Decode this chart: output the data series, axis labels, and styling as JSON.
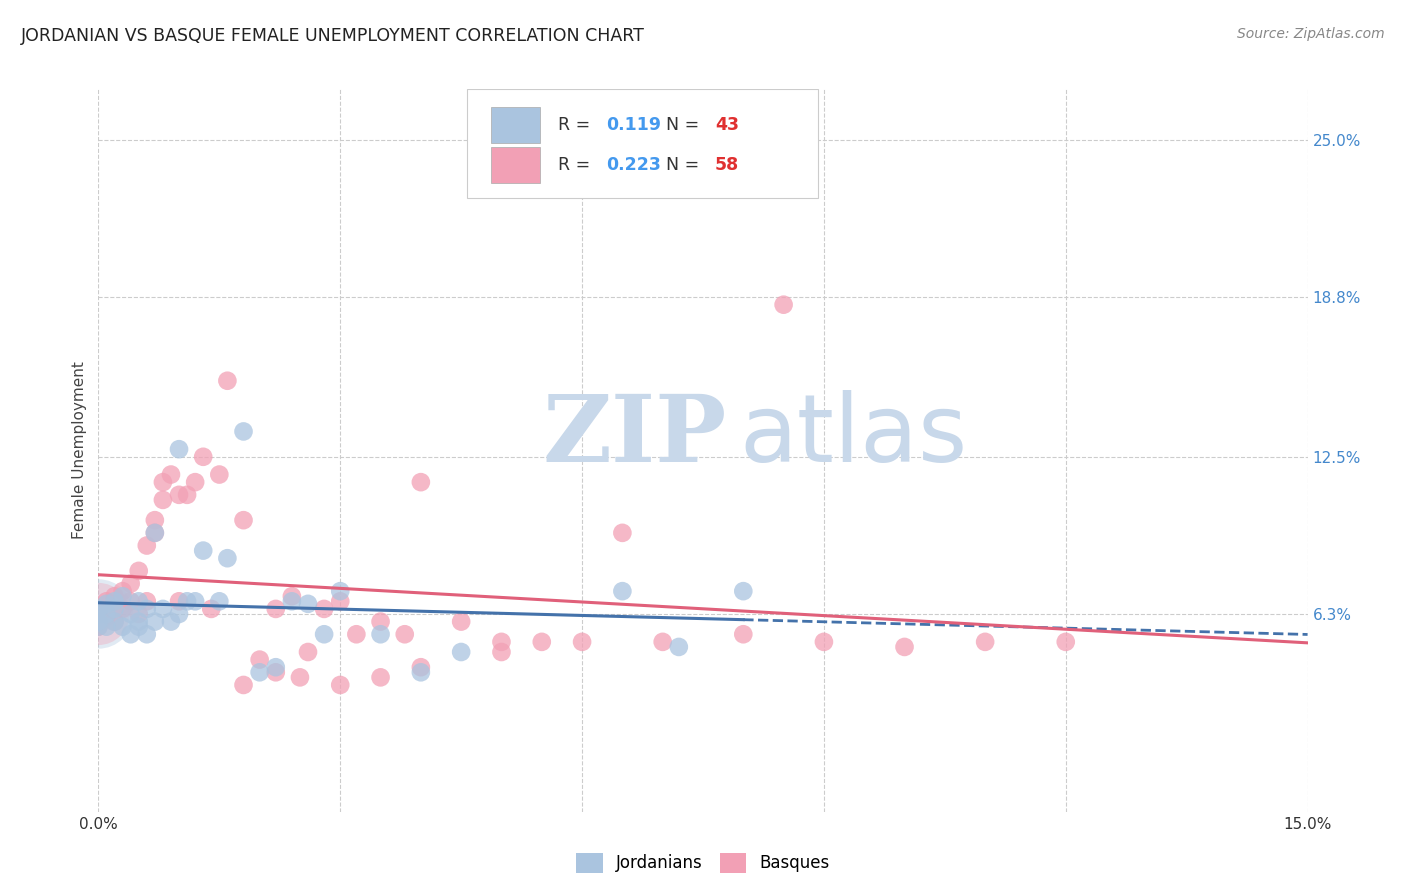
{
  "title": "JORDANIAN VS BASQUE FEMALE UNEMPLOYMENT CORRELATION CHART",
  "source": "Source: ZipAtlas.com",
  "ylabel": "Female Unemployment",
  "xlim": [
    0.0,
    0.15
  ],
  "ylim": [
    -0.015,
    0.27
  ],
  "yticks": [
    0.063,
    0.125,
    0.188,
    0.25
  ],
  "ytick_labels": [
    "6.3%",
    "12.5%",
    "18.8%",
    "25.0%"
  ],
  "xticks": [
    0.0,
    0.03,
    0.06,
    0.09,
    0.12,
    0.15
  ],
  "xtick_labels": [
    "0.0%",
    "",
    "",
    "",
    "",
    "15.0%"
  ],
  "background_color": "#ffffff",
  "grid_color": "#cccccc",
  "watermark_zip": "ZIP",
  "watermark_atlas": "atlas",
  "watermark_color_zip": "#c8d8ea",
  "watermark_color_atlas": "#c8d8ea",
  "jordanians_color": "#aac4df",
  "basques_color": "#f2a0b5",
  "jordanians_line_color": "#4472aa",
  "basques_line_color": "#e0607a",
  "R_jordanians": "0.119",
  "N_jordanians": "43",
  "R_basques": "0.223",
  "N_basques": "58",
  "jordanians_x": [
    0.0,
    0.0,
    0.0,
    0.0,
    0.001,
    0.001,
    0.001,
    0.002,
    0.002,
    0.002,
    0.003,
    0.003,
    0.004,
    0.004,
    0.005,
    0.005,
    0.005,
    0.006,
    0.006,
    0.007,
    0.007,
    0.008,
    0.009,
    0.01,
    0.01,
    0.011,
    0.012,
    0.013,
    0.015,
    0.016,
    0.018,
    0.02,
    0.022,
    0.024,
    0.026,
    0.028,
    0.03,
    0.035,
    0.04,
    0.045,
    0.065,
    0.072,
    0.08
  ],
  "jordanians_y": [
    0.063,
    0.06,
    0.058,
    0.065,
    0.058,
    0.063,
    0.067,
    0.06,
    0.065,
    0.068,
    0.058,
    0.07,
    0.055,
    0.063,
    0.06,
    0.058,
    0.068,
    0.055,
    0.065,
    0.095,
    0.06,
    0.065,
    0.06,
    0.063,
    0.128,
    0.068,
    0.068,
    0.088,
    0.068,
    0.085,
    0.135,
    0.04,
    0.042,
    0.068,
    0.067,
    0.055,
    0.072,
    0.055,
    0.04,
    0.048,
    0.072,
    0.05,
    0.072
  ],
  "basques_x": [
    0.0,
    0.0,
    0.0,
    0.001,
    0.001,
    0.002,
    0.002,
    0.003,
    0.003,
    0.004,
    0.004,
    0.005,
    0.005,
    0.006,
    0.006,
    0.007,
    0.007,
    0.008,
    0.008,
    0.009,
    0.01,
    0.01,
    0.011,
    0.012,
    0.013,
    0.014,
    0.015,
    0.016,
    0.018,
    0.02,
    0.022,
    0.024,
    0.026,
    0.028,
    0.03,
    0.032,
    0.035,
    0.038,
    0.04,
    0.045,
    0.05,
    0.055,
    0.06,
    0.065,
    0.07,
    0.08,
    0.085,
    0.09,
    0.1,
    0.11,
    0.12,
    0.03,
    0.018,
    0.022,
    0.025,
    0.035,
    0.04,
    0.05
  ],
  "basques_y": [
    0.06,
    0.065,
    0.058,
    0.062,
    0.068,
    0.06,
    0.07,
    0.065,
    0.072,
    0.068,
    0.075,
    0.063,
    0.08,
    0.09,
    0.068,
    0.095,
    0.1,
    0.115,
    0.108,
    0.118,
    0.068,
    0.11,
    0.11,
    0.115,
    0.125,
    0.065,
    0.118,
    0.155,
    0.1,
    0.045,
    0.065,
    0.07,
    0.048,
    0.065,
    0.068,
    0.055,
    0.06,
    0.055,
    0.115,
    0.06,
    0.052,
    0.052,
    0.052,
    0.095,
    0.052,
    0.055,
    0.185,
    0.052,
    0.05,
    0.052,
    0.052,
    0.035,
    0.035,
    0.04,
    0.038,
    0.038,
    0.042,
    0.048
  ],
  "cluster_x": [
    0.0
  ],
  "cluster_y": [
    0.063
  ],
  "cluster_size_j": 2500,
  "cluster_size_b": 2000,
  "scatter_size": 180
}
